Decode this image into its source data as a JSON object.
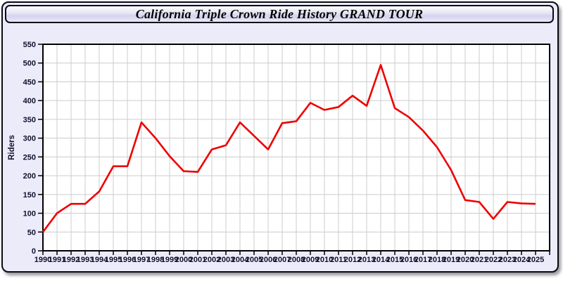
{
  "window": {
    "title": "California Triple Crown Ride History GRAND TOUR"
  },
  "chart_data": {
    "type": "line",
    "title": "California Triple Crown Ride History GRAND TOUR",
    "xlabel": "",
    "ylabel": "Riders",
    "x": [
      1990,
      1991,
      1992,
      1993,
      1994,
      1995,
      1996,
      1997,
      1998,
      1999,
      2000,
      2001,
      2002,
      2003,
      2004,
      2005,
      2006,
      2007,
      2008,
      2009,
      2010,
      2011,
      2012,
      2013,
      2014,
      2015,
      2016,
      2017,
      2018,
      2019,
      2020,
      2021,
      2022,
      2023,
      2024,
      2025
    ],
    "series": [
      {
        "name": "Riders",
        "values": [
          50,
          100,
          125,
          125,
          158,
          225,
          225,
          342,
          300,
          252,
          212,
          210,
          270,
          281,
          342,
          306,
          270,
          340,
          345,
          394,
          375,
          383,
          413,
          386,
          495,
          380,
          356,
          320,
          276,
          215,
          135,
          130,
          85,
          130,
          126,
          125
        ]
      }
    ],
    "ylim": [
      0,
      550
    ],
    "ytick_step": 50,
    "grid": true,
    "legend_position": "none",
    "yticks": [
      0,
      50,
      100,
      150,
      200,
      250,
      300,
      350,
      400,
      450,
      500,
      550
    ]
  },
  "colors": {
    "line": "#ee0000",
    "plot_bg": "#ffffff",
    "grid": "#cccccc",
    "axis": "#000000",
    "tick_label": "#10102c",
    "panel_bg": "#ebebfa",
    "panel_border": "#0a0a14",
    "titlebar_top": "#fdfdff",
    "titlebar_bottom": "#e9e9f8"
  }
}
